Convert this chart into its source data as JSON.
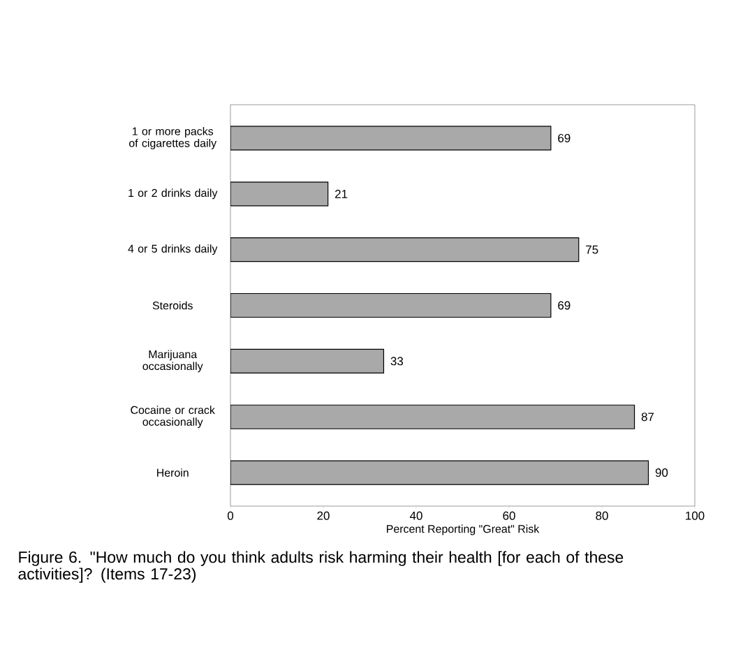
{
  "chart_data": {
    "type": "bar",
    "orientation": "horizontal",
    "categories": [
      "1 or more packs of cigarettes daily",
      "1 or 2 drinks daily",
      "4 or 5 drinks daily",
      "Steroids",
      "Marijuana occasionally",
      "Cocaine or crack occasionally",
      "Heroin"
    ],
    "values": [
      69,
      21,
      75,
      69,
      33,
      87,
      90
    ],
    "color": "#a9a9a9",
    "data_labels": true,
    "xlim": [
      0,
      100
    ],
    "xticks": [
      0,
      20,
      40,
      60,
      80,
      100
    ],
    "xlabel": "Percent Reporting \"Great\" Risk",
    "annotations": [
      "Figure 6.  \"How much do you think adults risk harming their health [for each of these activities]?  (Items 17-23)"
    ],
    "grid": false
  }
}
